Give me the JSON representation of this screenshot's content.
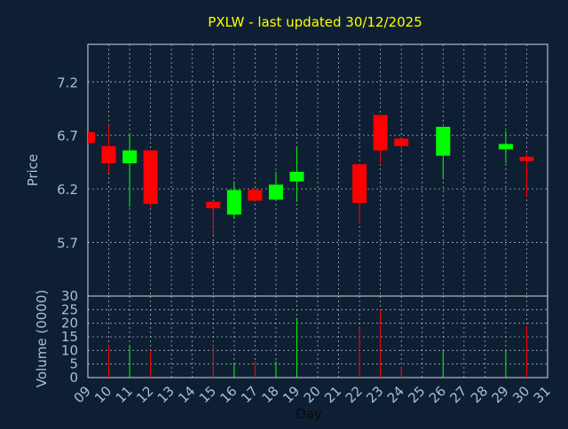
{
  "chart_data": {
    "type": "candlestick",
    "title": "PXLW - last updated 30/12/2025",
    "xlabel": "Day",
    "price_panel": {
      "ylabel": "Price",
      "ylim": [
        5.2,
        7.55
      ],
      "yticks": [
        "5.7",
        "6.2",
        "6.7",
        "7.2"
      ]
    },
    "volume_panel": {
      "ylabel": "Volume (0000)",
      "ylim": [
        0,
        30
      ],
      "yticks": [
        "0",
        "5",
        "10",
        "15",
        "20",
        "25",
        "30"
      ]
    },
    "x_ticks": [
      "09",
      "10",
      "11",
      "12",
      "13",
      "14",
      "15",
      "16",
      "17",
      "18",
      "19",
      "20",
      "21",
      "22",
      "23",
      "24",
      "25",
      "26",
      "27",
      "28",
      "29",
      "30",
      "31"
    ],
    "candles": [
      {
        "day": "09",
        "open": 6.73,
        "close": 6.63,
        "high": 6.73,
        "low": 6.63,
        "volume": 0
      },
      {
        "day": "10",
        "open": 6.6,
        "close": 6.44,
        "high": 6.8,
        "low": 6.35,
        "volume": 12
      },
      {
        "day": "11",
        "open": 6.44,
        "close": 6.56,
        "high": 6.72,
        "low": 6.03,
        "volume": 12
      },
      {
        "day": "12",
        "open": 6.56,
        "close": 6.06,
        "high": 6.56,
        "low": 6.03,
        "volume": 10
      },
      {
        "day": "15",
        "open": 6.08,
        "close": 6.02,
        "high": 6.08,
        "low": 5.77,
        "volume": 12
      },
      {
        "day": "16",
        "open": 5.96,
        "close": 6.19,
        "high": 6.27,
        "low": 5.92,
        "volume": 5
      },
      {
        "day": "17",
        "open": 6.19,
        "close": 6.09,
        "high": 6.21,
        "low": 6.09,
        "volume": 6
      },
      {
        "day": "18",
        "open": 6.1,
        "close": 6.24,
        "high": 6.36,
        "low": 6.1,
        "volume": 6
      },
      {
        "day": "19",
        "open": 6.27,
        "close": 6.36,
        "high": 6.59,
        "low": 6.08,
        "volume": 22
      },
      {
        "day": "22",
        "open": 6.43,
        "close": 6.07,
        "high": 6.44,
        "low": 5.87,
        "volume": 18
      },
      {
        "day": "23",
        "open": 6.89,
        "close": 6.56,
        "high": 6.89,
        "low": 6.44,
        "volume": 25
      },
      {
        "day": "24",
        "open": 6.67,
        "close": 6.6,
        "high": 6.67,
        "low": 6.56,
        "volume": 4
      },
      {
        "day": "26",
        "open": 6.51,
        "close": 6.78,
        "high": 6.78,
        "low": 6.29,
        "volume": 10
      },
      {
        "day": "29",
        "open": 6.57,
        "close": 6.62,
        "high": 6.74,
        "low": 6.44,
        "volume": 10
      },
      {
        "day": "30",
        "open": 6.5,
        "close": 6.46,
        "high": 6.53,
        "low": 6.12,
        "volume": 19
      }
    ],
    "colors": {
      "up": "#00ff00",
      "down": "#ff0000",
      "background": "#0f1f33",
      "title": "#ffff00",
      "axis_text": "#a8bfd6",
      "grid": "#c8d2dc"
    },
    "grid": true
  }
}
